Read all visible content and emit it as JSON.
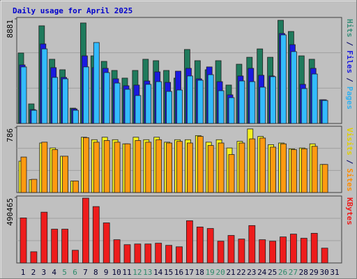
{
  "chart_data": {
    "type": "bar",
    "title": "Daily usage for April 2025",
    "categories": [
      "1",
      "2",
      "3",
      "4",
      "5",
      "6",
      "7",
      "8",
      "9",
      "10",
      "11",
      "12",
      "13",
      "14",
      "15",
      "16",
      "17",
      "18",
      "19",
      "20",
      "21",
      "22",
      "23",
      "24",
      "25",
      "26",
      "27",
      "28",
      "29",
      "30",
      "31"
    ],
    "category_colors": [
      "#000033",
      "#000033",
      "#000033",
      "#000033",
      "#2e8b6b",
      "#2e8b6b",
      "#000033",
      "#000033",
      "#000033",
      "#000033",
      "#000033",
      "#2e8b6b",
      "#2e8b6b",
      "#000033",
      "#000033",
      "#000033",
      "#000033",
      "#000033",
      "#2e8b6b",
      "#2e8b6b",
      "#000033",
      "#000033",
      "#000033",
      "#000033",
      "#000033",
      "#2e8b6b",
      "#2e8b6b",
      "#000033",
      "#000033",
      "#000033",
      "#000033"
    ],
    "legend_separator": "/",
    "panels": [
      {
        "ylim": [
          0,
          8881
        ],
        "yticks": [
          8881
        ],
        "series": [
          {
            "name": "Hits",
            "color": "#1f7a5c",
            "label_color": "#3a8f7a",
            "values": [
              5980,
              1660,
              8290,
              5450,
              4560,
              1300,
              8530,
              5740,
              5270,
              4500,
              3850,
              4500,
              5450,
              5330,
              4500,
              3850,
              6280,
              5330,
              4560,
              5330,
              3260,
              5030,
              5620,
              6330,
              5620,
              8760,
              7810,
              5740,
              5450,
              2010,
              null
            ]
          },
          {
            "name": "Files",
            "color": "#1a1ae0",
            "label_color": "#2020e0",
            "values": [
              4970,
              1180,
              6750,
              4740,
              3910,
              1240,
              5740,
              4740,
              4680,
              3790,
              3200,
              3260,
              3610,
              4380,
              3490,
              4440,
              4680,
              3790,
              4800,
              3550,
              2430,
              4030,
              4680,
              4090,
              4030,
              7640,
              6690,
              3320,
              4680,
              2010,
              null
            ]
          },
          {
            "name": "Pages",
            "color": "#33bbff",
            "label_color": "#30b0f0",
            "values": [
              4800,
              1120,
              6330,
              3910,
              3790,
              1120,
              4800,
              6870,
              4320,
              3430,
              2900,
              2370,
              3320,
              3550,
              2720,
              2840,
              4030,
              3670,
              4140,
              2780,
              2190,
              3610,
              3550,
              3080,
              3970,
              7520,
              6100,
              2960,
              4200,
              1950,
              null
            ]
          }
        ]
      },
      {
        "ylim": [
          0,
          786
        ],
        "yticks": [
          786
        ],
        "series": [
          {
            "name": "Visits",
            "color": "#f4f020",
            "label_color": "#e0d000",
            "values": [
              380,
              155,
              600,
              540,
              440,
              140,
              670,
              640,
              670,
              640,
              590,
              670,
              640,
              670,
              610,
              640,
              640,
              690,
              610,
              640,
              540,
              620,
              770,
              680,
              580,
              600,
              530,
              540,
              590,
              340,
              null
            ]
          },
          {
            "name": "Sites",
            "color": "#ff9a10",
            "label_color": "#ff8c00",
            "values": [
              430,
              160,
              610,
              520,
              440,
              140,
              665,
              610,
              630,
              610,
              590,
              630,
              610,
              640,
              600,
              620,
              600,
              680,
              570,
              600,
              460,
              600,
              650,
              660,
              550,
              590,
              520,
              530,
              560,
              340,
              null
            ]
          }
        ]
      },
      {
        "ylim": [
          0,
          490465
        ],
        "yticks": [
          490465
        ],
        "series": [
          {
            "name": "KBytes",
            "color": "#ee1c1c",
            "label_color": "#ee1c1c",
            "values": [
              337000,
              84000,
              380000,
              253000,
              253000,
              95000,
              485000,
              422000,
              300000,
              174000,
              137000,
              142000,
              142000,
              148000,
              132000,
              121000,
              316000,
              269000,
              258000,
              163000,
              206000,
              179000,
              280000,
              174000,
              163000,
              195000,
              216000,
              185000,
              222000,
              111000,
              null
            ]
          }
        ]
      }
    ]
  }
}
